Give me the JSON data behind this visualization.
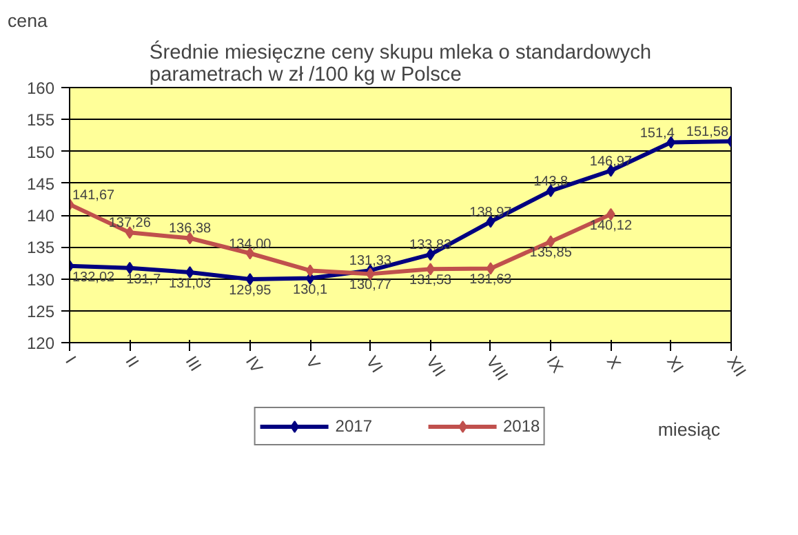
{
  "chart_data": {
    "type": "line",
    "title": "Średnie miesięczne ceny skupu mleka o standardowych parametrach w zł /100 kg w Polsce",
    "xlabel": "miesiąc",
    "ylabel": "cena",
    "categories": [
      "I",
      "II",
      "III",
      "IV",
      "V",
      "VI",
      "VII",
      "VIII",
      "IX",
      "X",
      "XI",
      "XII"
    ],
    "series": [
      {
        "name": "2017",
        "color": "#000080",
        "values": [
          132.02,
          131.7,
          131.03,
          129.95,
          130.1,
          131.33,
          133.83,
          138.97,
          143.8,
          146.97,
          151.4,
          151.58
        ],
        "value_labels": [
          "132,02",
          "131,7",
          "131,03",
          "129,95",
          "130,1",
          "131,33",
          "133,83",
          "138,97",
          "143,8",
          "146,97",
          "151,4",
          "151,58"
        ]
      },
      {
        "name": "2018",
        "color": "#c0504d",
        "values": [
          141.67,
          137.26,
          136.38,
          134.0,
          131.3,
          130.77,
          131.53,
          131.63,
          135.85,
          140.12,
          null,
          null
        ],
        "value_labels": [
          "141,67",
          "137,26",
          "136,38",
          "134,00",
          null,
          "130,77",
          "131,53",
          "131,63",
          "135,85",
          "140,12",
          null,
          null
        ]
      }
    ],
    "ylim": [
      120,
      160
    ],
    "yticks": [
      120,
      125,
      130,
      135,
      140,
      145,
      150,
      155,
      160
    ],
    "grid": "y",
    "legend": "bottom",
    "marker": "diamond",
    "line_style": "solid"
  }
}
